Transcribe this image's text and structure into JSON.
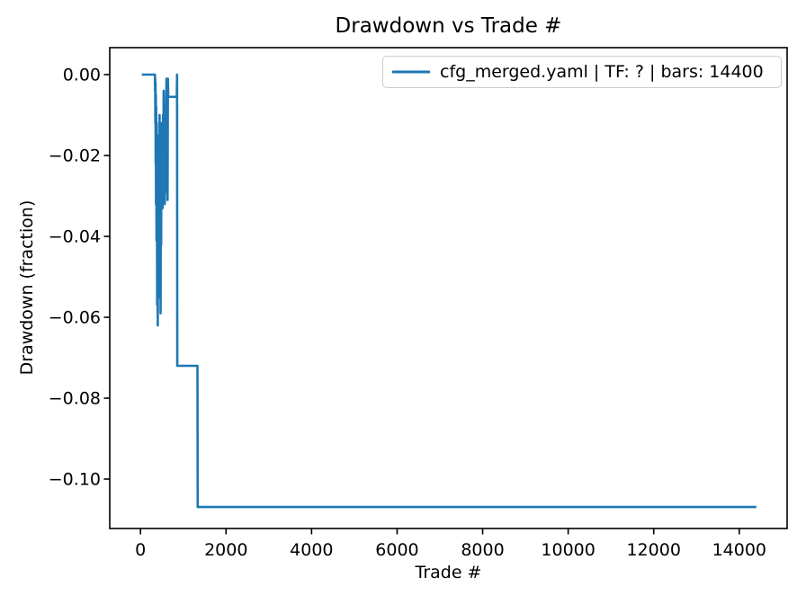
{
  "chart_data": {
    "type": "line",
    "title": "Drawdown vs Trade #",
    "xlabel": "Trade #",
    "ylabel": "Drawdown (fraction)",
    "legend": [
      "cfg_merged.yaml | TF: ? | bars: 14400"
    ],
    "legend_position": "upper right",
    "grid": false,
    "line_color": "#1f77b4",
    "axis_color": "#000000",
    "xlim": [
      -719,
      15119
    ],
    "ylim": [
      -0.11222,
      0.00667
    ],
    "xticks": [
      0,
      2000,
      4000,
      6000,
      8000,
      10000,
      12000,
      14000
    ],
    "xtick_labels": [
      "0",
      "2000",
      "4000",
      "6000",
      "8000",
      "10000",
      "12000",
      "14000"
    ],
    "yticks": [
      0.0,
      -0.02,
      -0.04,
      -0.06,
      -0.08,
      -0.1
    ],
    "ytick_labels": [
      "0.00",
      "−0.02",
      "−0.04",
      "−0.06",
      "−0.08",
      "−0.10"
    ],
    "series": [
      {
        "name": "cfg_merged.yaml | TF: ? | bars: 14400",
        "points": [
          [
            30,
            0
          ],
          [
            338,
            0
          ],
          [
            341,
            -0.004
          ],
          [
            344,
            -0.001
          ],
          [
            347,
            -0.012
          ],
          [
            351,
            -0.002
          ],
          [
            355,
            -0.022
          ],
          [
            359,
            -0.005
          ],
          [
            363,
            -0.032
          ],
          [
            367,
            -0.008
          ],
          [
            371,
            -0.024
          ],
          [
            375,
            -0.041
          ],
          [
            380,
            -0.012
          ],
          [
            385,
            -0.035
          ],
          [
            390,
            -0.057
          ],
          [
            394,
            -0.02
          ],
          [
            399,
            -0.045
          ],
          [
            404,
            -0.062
          ],
          [
            409,
            -0.03
          ],
          [
            414,
            -0.05
          ],
          [
            419,
            -0.015
          ],
          [
            424,
            -0.038
          ],
          [
            429,
            -0.055
          ],
          [
            434,
            -0.022
          ],
          [
            440,
            -0.048
          ],
          [
            446,
            -0.01
          ],
          [
            452,
            -0.028
          ],
          [
            458,
            -0.05
          ],
          [
            464,
            -0.018
          ],
          [
            470,
            -0.059
          ],
          [
            476,
            -0.025
          ],
          [
            483,
            -0.042
          ],
          [
            490,
            -0.012
          ],
          [
            497,
            -0.033
          ],
          [
            504,
            -0.02
          ],
          [
            511,
            -0.028
          ],
          [
            518,
            -0.033
          ],
          [
            526,
            -0.01
          ],
          [
            534,
            -0.022
          ],
          [
            542,
            -0.004
          ],
          [
            550,
            -0.028
          ],
          [
            558,
            -0.013
          ],
          [
            568,
            -0.032
          ],
          [
            578,
            -0.02
          ],
          [
            588,
            -0.029
          ],
          [
            598,
            -0.008
          ],
          [
            608,
            -0.001
          ],
          [
            617,
            -0.028
          ],
          [
            625,
            -0.003
          ],
          [
            633,
            -0.031
          ],
          [
            641,
            -0.001
          ],
          [
            649,
            -0.0055
          ],
          [
            848,
            -0.0055
          ],
          [
            855,
            0
          ],
          [
            860,
            -0.072
          ],
          [
            1332,
            -0.072
          ],
          [
            1338,
            -0.1069
          ],
          [
            14400,
            -0.1069
          ]
        ]
      }
    ]
  }
}
